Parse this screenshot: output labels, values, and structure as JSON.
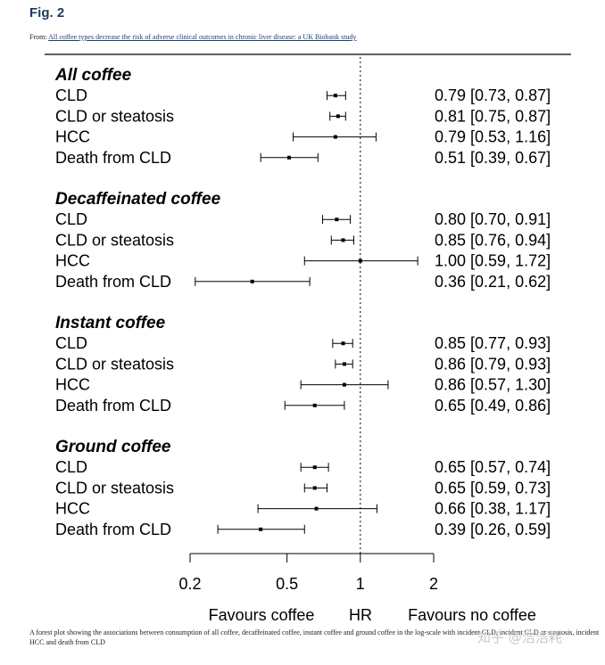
{
  "figure": {
    "label": "Fig. 2",
    "from_prefix": "From: ",
    "from_link": "All coffee types decrease the risk of adverse clinical outcomes in chronic liver disease: a UK Biobank study",
    "caption": "A forest plot showing the associations between consumption of all coffee, decaffeinated coffee, instant coffee and ground coffee in the log-scale with incident CLD, incident CLD or steatosis, incident HCC and death from CLD",
    "watermark": "知乎 @浩浩耗"
  },
  "chart_data": {
    "type": "forest",
    "x_scale": "log",
    "xlim": [
      0.2,
      2
    ],
    "reference_line": 1,
    "x_ticks": [
      0.2,
      0.5,
      1,
      2
    ],
    "x_tick_labels": [
      "0.2",
      "0.5",
      "1",
      "2"
    ],
    "axis_labels": {
      "left": "Favours coffee",
      "center": "HR",
      "right": "Favours no coffee"
    },
    "groups": [
      {
        "title": "All coffee",
        "rows": [
          {
            "label": "CLD",
            "hr": 0.79,
            "lo": 0.73,
            "hi": 0.87,
            "text": "0.79 [0.73, 0.87]"
          },
          {
            "label": "CLD or steatosis",
            "hr": 0.81,
            "lo": 0.75,
            "hi": 0.87,
            "text": "0.81 [0.75, 0.87]"
          },
          {
            "label": "HCC",
            "hr": 0.79,
            "lo": 0.53,
            "hi": 1.16,
            "text": "0.79 [0.53, 1.16]"
          },
          {
            "label": "Death from CLD",
            "hr": 0.51,
            "lo": 0.39,
            "hi": 0.67,
            "text": "0.51 [0.39, 0.67]"
          }
        ]
      },
      {
        "title": "Decaffeinated coffee",
        "rows": [
          {
            "label": "CLD",
            "hr": 0.8,
            "lo": 0.7,
            "hi": 0.91,
            "text": "0.80 [0.70, 0.91]"
          },
          {
            "label": "CLD or steatosis",
            "hr": 0.85,
            "lo": 0.76,
            "hi": 0.94,
            "text": "0.85 [0.76, 0.94]"
          },
          {
            "label": "HCC",
            "hr": 1.0,
            "lo": 0.59,
            "hi": 1.72,
            "text": "1.00 [0.59, 1.72]"
          },
          {
            "label": "Death from CLD",
            "hr": 0.36,
            "lo": 0.21,
            "hi": 0.62,
            "text": "0.36 [0.21, 0.62]"
          }
        ]
      },
      {
        "title": "Instant coffee",
        "rows": [
          {
            "label": "CLD",
            "hr": 0.85,
            "lo": 0.77,
            "hi": 0.93,
            "text": "0.85 [0.77, 0.93]"
          },
          {
            "label": "CLD or steatosis",
            "hr": 0.86,
            "lo": 0.79,
            "hi": 0.93,
            "text": "0.86 [0.79, 0.93]"
          },
          {
            "label": "HCC",
            "hr": 0.86,
            "lo": 0.57,
            "hi": 1.3,
            "text": "0.86 [0.57, 1.30]"
          },
          {
            "label": "Death from CLD",
            "hr": 0.65,
            "lo": 0.49,
            "hi": 0.86,
            "text": "0.65 [0.49, 0.86]"
          }
        ]
      },
      {
        "title": "Ground coffee",
        "rows": [
          {
            "label": "CLD",
            "hr": 0.65,
            "lo": 0.57,
            "hi": 0.74,
            "text": "0.65 [0.57, 0.74]"
          },
          {
            "label": "CLD or steatosis",
            "hr": 0.65,
            "lo": 0.59,
            "hi": 0.73,
            "text": "0.65 [0.59, 0.73]"
          },
          {
            "label": "HCC",
            "hr": 0.66,
            "lo": 0.38,
            "hi": 1.17,
            "text": "0.66 [0.38, 1.17]"
          },
          {
            "label": "Death from CLD",
            "hr": 0.39,
            "lo": 0.26,
            "hi": 0.59,
            "text": "0.39 [0.26, 0.59]"
          }
        ]
      }
    ]
  }
}
